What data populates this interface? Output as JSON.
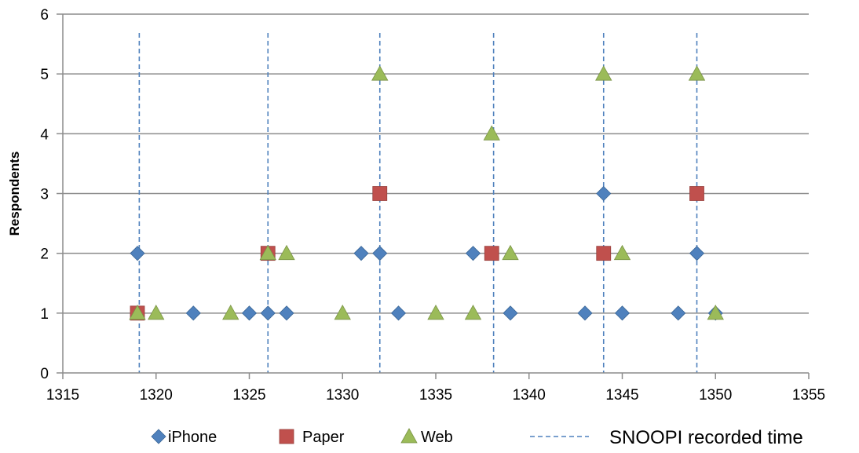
{
  "chart_data": {
    "type": "scatter",
    "title": "",
    "xlabel": "",
    "ylabel": "Respondents",
    "xlim": [
      1315,
      1355
    ],
    "ylim": [
      0,
      6
    ],
    "x_ticks": [
      1315,
      1320,
      1325,
      1330,
      1335,
      1340,
      1345,
      1350,
      1355
    ],
    "y_ticks": [
      0,
      1,
      2,
      3,
      4,
      5,
      6
    ],
    "grid": "horizontal",
    "legend_position": "bottom",
    "series": [
      {
        "name": "iPhone",
        "marker": "diamond",
        "color": "#4F81BD",
        "points": [
          [
            1319,
            2
          ],
          [
            1322,
            1
          ],
          [
            1325,
            1
          ],
          [
            1326,
            1
          ],
          [
            1327,
            1
          ],
          [
            1331,
            2
          ],
          [
            1332,
            2
          ],
          [
            1333,
            1
          ],
          [
            1337,
            2
          ],
          [
            1339,
            1
          ],
          [
            1343,
            1
          ],
          [
            1344,
            3
          ],
          [
            1345,
            1
          ],
          [
            1348,
            1
          ],
          [
            1349,
            2
          ],
          [
            1350,
            1
          ]
        ]
      },
      {
        "name": "Paper",
        "marker": "square",
        "color": "#C0504D",
        "points": [
          [
            1319,
            1
          ],
          [
            1326,
            2
          ],
          [
            1332,
            3
          ],
          [
            1338,
            2
          ],
          [
            1344,
            2
          ],
          [
            1349,
            3
          ]
        ]
      },
      {
        "name": "Web",
        "marker": "triangle",
        "color": "#9BBB59",
        "points": [
          [
            1319,
            1
          ],
          [
            1320,
            1
          ],
          [
            1324,
            1
          ],
          [
            1326,
            2
          ],
          [
            1327,
            2
          ],
          [
            1330,
            1
          ],
          [
            1332,
            5
          ],
          [
            1335,
            1
          ],
          [
            1337,
            1
          ],
          [
            1338,
            4
          ],
          [
            1339,
            2
          ],
          [
            1344,
            5
          ],
          [
            1345,
            2
          ],
          [
            1349,
            5
          ],
          [
            1350,
            1
          ]
        ]
      },
      {
        "name": "SNOOPI recorded time",
        "marker": "dashed-vertical-line",
        "color": "#4F81BD",
        "x": [
          1319.1,
          1326,
          1332,
          1338.1,
          1344,
          1349
        ]
      }
    ]
  }
}
